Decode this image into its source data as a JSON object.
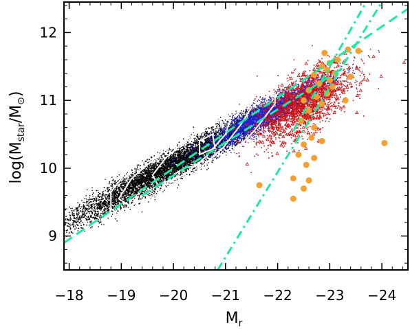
{
  "chart_data": {
    "type": "scatter",
    "xlabel": "M",
    "xlabel_sub": "r",
    "ylabel_parts": [
      "log(M",
      "star",
      "/M",
      "⊙",
      ")"
    ],
    "xlim": [
      -17.9,
      -24.5
    ],
    "ylim": [
      8.5,
      12.45
    ],
    "x_ticks": [
      -18,
      -19,
      -20,
      -21,
      -22,
      -23,
      -24
    ],
    "x_tick_labels": [
      "−18",
      "−19",
      "−20",
      "−21",
      "−22",
      "−23",
      "−24"
    ],
    "y_ticks": [
      9,
      10,
      11,
      12
    ],
    "y_tick_labels": [
      "9",
      "10",
      "11",
      "12"
    ],
    "grid": false,
    "colors": {
      "black_points": "#000000",
      "blue_points": "#2020e0",
      "red_points": "#d01010",
      "orange_points": "#f5a030",
      "contours": "#ffffff",
      "fit_lines": "#1de9a0"
    },
    "series": [
      {
        "marker": "dot",
        "color": "#000000",
        "distribution": {
          "center": [
            -20.0,
            10.05
          ],
          "spread_along": 1.05,
          "spread_across": 0.11,
          "slope": 0.42,
          "count": 9000
        }
      },
      {
        "marker": "dot",
        "color": "#2020e0",
        "distribution": {
          "center": [
            -21.8,
            10.8
          ],
          "spread_along": 0.6,
          "spread_across": 0.1,
          "slope": 0.42,
          "count": 3500
        }
      },
      {
        "marker": "triangle",
        "color": "#d01010",
        "distribution": {
          "center": [
            -22.5,
            10.95
          ],
          "spread_along": 0.45,
          "spread_across": 0.22,
          "slope": 0.42,
          "count": 1800
        }
      },
      {
        "marker": "circle",
        "color": "#f5a030",
        "points": [
          [
            -23.35,
            11.75
          ],
          [
            -23.55,
            11.73
          ],
          [
            -23.0,
            11.55
          ],
          [
            -22.85,
            11.5
          ],
          [
            -22.95,
            11.45
          ],
          [
            -23.1,
            11.4
          ],
          [
            -22.7,
            11.38
          ],
          [
            -23.0,
            11.3
          ],
          [
            -23.4,
            11.35
          ],
          [
            -22.8,
            11.25
          ],
          [
            -23.05,
            11.2
          ],
          [
            -22.6,
            11.15
          ],
          [
            -22.95,
            11.1
          ],
          [
            -22.75,
            11.05
          ],
          [
            -22.5,
            11.0
          ],
          [
            -22.85,
            10.95
          ],
          [
            -22.6,
            10.85
          ],
          [
            -22.45,
            10.7
          ],
          [
            -22.7,
            10.6
          ],
          [
            -22.65,
            10.45
          ],
          [
            -22.5,
            10.35
          ],
          [
            -22.85,
            10.4
          ],
          [
            -22.4,
            10.2
          ],
          [
            -22.7,
            10.15
          ],
          [
            -22.55,
            10.05
          ],
          [
            -24.05,
            10.37
          ],
          [
            -22.3,
            9.85
          ],
          [
            -22.5,
            9.7
          ],
          [
            -21.65,
            9.75
          ],
          [
            -22.3,
            9.55
          ],
          [
            -22.6,
            9.82
          ],
          [
            -23.15,
            11.6
          ],
          [
            -22.9,
            11.7
          ],
          [
            -23.3,
            11.0
          ]
        ]
      }
    ],
    "contours": [
      [
        [
          -19.05,
          9.3
        ],
        [
          -19.8,
          9.55
        ],
        [
          -20.5,
          9.85
        ],
        [
          -21.1,
          10.2
        ],
        [
          -21.55,
          10.55
        ],
        [
          -21.95,
          10.95
        ],
        [
          -21.95,
          11.1
        ],
        [
          -21.6,
          11.1
        ],
        [
          -21.0,
          10.9
        ],
        [
          -20.3,
          10.6
        ],
        [
          -19.6,
          10.25
        ],
        [
          -19.1,
          9.95
        ],
        [
          -18.8,
          9.65
        ],
        [
          -18.8,
          9.4
        ]
      ],
      [
        [
          -19.15,
          9.45
        ],
        [
          -19.85,
          9.65
        ],
        [
          -20.45,
          9.95
        ],
        [
          -20.95,
          10.3
        ],
        [
          -21.3,
          10.65
        ],
        [
          -21.5,
          10.9
        ],
        [
          -21.35,
          11.0
        ],
        [
          -20.85,
          10.8
        ],
        [
          -20.25,
          10.5
        ],
        [
          -19.65,
          10.15
        ],
        [
          -19.2,
          9.85
        ],
        [
          -18.95,
          9.55
        ]
      ],
      [
        [
          -19.7,
          9.75
        ],
        [
          -20.2,
          9.9
        ],
        [
          -20.6,
          10.15
        ],
        [
          -21.0,
          10.5
        ],
        [
          -21.1,
          10.75
        ],
        [
          -20.8,
          10.7
        ],
        [
          -20.3,
          10.45
        ],
        [
          -19.85,
          10.15
        ],
        [
          -19.6,
          9.9
        ]
      ],
      [
        [
          -20.0,
          9.8
        ],
        [
          -20.4,
          9.82
        ],
        [
          -20.5,
          10.05
        ],
        [
          -20.2,
          10.0
        ],
        [
          -20.0,
          9.9
        ]
      ],
      [
        [
          -20.5,
          10.2
        ],
        [
          -20.8,
          10.3
        ],
        [
          -20.75,
          10.5
        ],
        [
          -20.5,
          10.4
        ]
      ]
    ],
    "lines": [
      {
        "style": "dashed",
        "points": [
          [
            -17.9,
            8.9
          ],
          [
            -24.5,
            12.35
          ]
        ]
      },
      {
        "style": "dashed",
        "points": [
          [
            -19.4,
            9.6
          ],
          [
            -23.3,
            11.5
          ]
        ]
      },
      {
        "style": "dashdot",
        "points": [
          [
            -20.85,
            8.5
          ],
          [
            -24.0,
            12.45
          ]
        ]
      },
      {
        "style": "dashdot",
        "points": [
          [
            -22.3,
            10.55
          ],
          [
            -23.7,
            12.45
          ]
        ]
      }
    ]
  }
}
